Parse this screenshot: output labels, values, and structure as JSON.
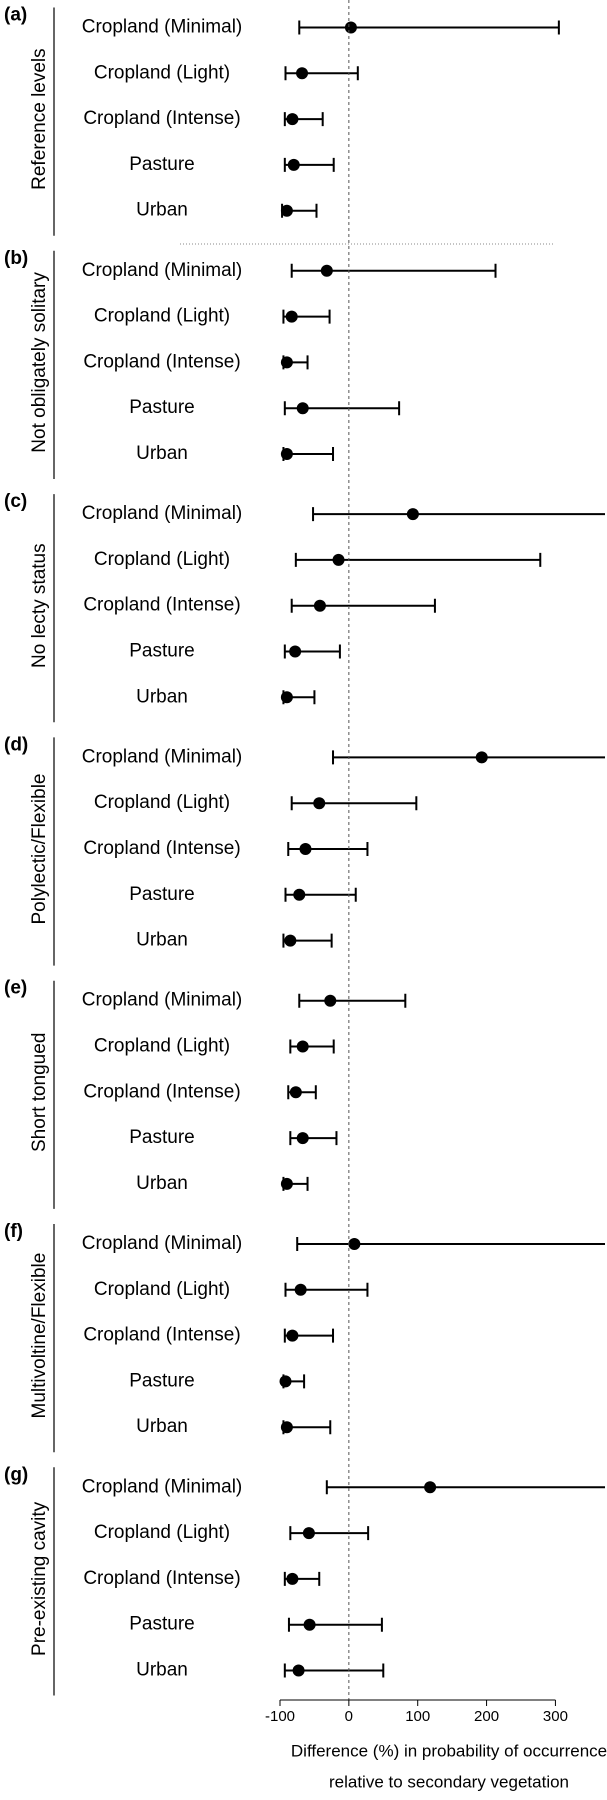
{
  "chart_data": {
    "type": "forest",
    "xlim": [
      -100,
      372
    ],
    "xticks": [
      -100,
      0,
      100,
      200,
      300
    ],
    "x_label": [
      "Difference (%) in probability of occurrence",
      "relative to secondary vegetation"
    ],
    "color": "#000000",
    "panels": [
      {
        "label": "(a)",
        "title": "Reference levels",
        "categories": [
          "Cropland (Minimal)",
          "Cropland (Light)",
          "Cropland (Intense)",
          "Pasture",
          "Urban"
        ],
        "values": [
          3,
          -68,
          -82,
          -80,
          -90
        ],
        "ci_low": [
          -72,
          -92,
          -93,
          -93,
          -97
        ],
        "ci_high": [
          305,
          13,
          -38,
          -22,
          -47
        ]
      },
      {
        "label": "(b)",
        "title": "Not obligately solitary",
        "categories": [
          "Cropland (Minimal)",
          "Cropland (Light)",
          "Cropland (Intense)",
          "Pasture",
          "Urban"
        ],
        "values": [
          -32,
          -83,
          -90,
          -67,
          -90
        ],
        "ci_low": [
          -83,
          -95,
          -95,
          -93,
          -95
        ],
        "ci_high": [
          213,
          -28,
          -60,
          73,
          -23
        ]
      },
      {
        "label": "(c)",
        "title": "No lecty status",
        "categories": [
          "Cropland (Minimal)",
          "Cropland (Light)",
          "Cropland (Intense)",
          "Pasture",
          "Urban"
        ],
        "values": [
          93,
          -15,
          -42,
          -78,
          -90
        ],
        "ci_low": [
          -52,
          -77,
          -83,
          -93,
          -95
        ],
        "ci_high": [
          380,
          278,
          125,
          -13,
          -50
        ]
      },
      {
        "label": "(d)",
        "title": "Polylectic/Flexible",
        "categories": [
          "Cropland (Minimal)",
          "Cropland (Light)",
          "Cropland (Intense)",
          "Pasture",
          "Urban"
        ],
        "values": [
          193,
          -43,
          -63,
          -72,
          -85
        ],
        "ci_low": [
          -23,
          -83,
          -88,
          -92,
          -95
        ],
        "ci_high": [
          450,
          98,
          27,
          10,
          -25
        ]
      },
      {
        "label": "(e)",
        "title": "Short tongued",
        "categories": [
          "Cropland (Minimal)",
          "Cropland (Light)",
          "Cropland (Intense)",
          "Pasture",
          "Urban"
        ],
        "values": [
          -27,
          -67,
          -77,
          -67,
          -90
        ],
        "ci_low": [
          -72,
          -85,
          -88,
          -85,
          -95
        ],
        "ci_high": [
          82,
          -22,
          -48,
          -18,
          -60
        ]
      },
      {
        "label": "(f)",
        "title": "Multivoltine/Flexible",
        "categories": [
          "Cropland (Minimal)",
          "Cropland (Light)",
          "Cropland (Intense)",
          "Pasture",
          "Urban"
        ],
        "values": [
          8,
          -70,
          -82,
          -92,
          -90
        ],
        "ci_low": [
          -75,
          -92,
          -93,
          -95,
          -95
        ],
        "ci_high": [
          400,
          27,
          -23,
          -65,
          -27
        ]
      },
      {
        "label": "(g)",
        "title": "Pre-existing cavity",
        "categories": [
          "Cropland (Minimal)",
          "Cropland (Light)",
          "Cropland (Intense)",
          "Pasture",
          "Urban"
        ],
        "values": [
          118,
          -58,
          -82,
          -57,
          -73
        ],
        "ci_low": [
          -32,
          -85,
          -93,
          -87,
          -93
        ],
        "ci_high": [
          400,
          28,
          -43,
          48,
          50
        ]
      }
    ]
  }
}
